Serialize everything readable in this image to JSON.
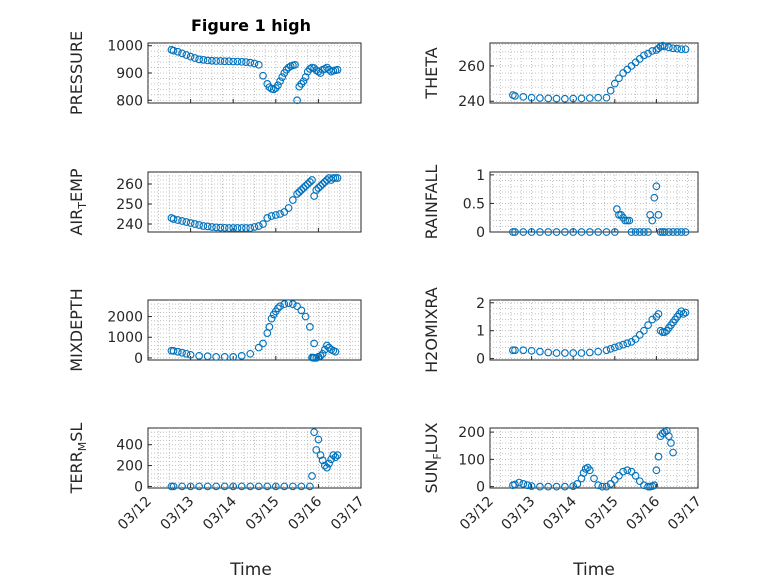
{
  "title": "Figure 1 high",
  "xlabel": "Time",
  "x_ticks": [
    "03/12",
    "03/13",
    "03/14",
    "03/15",
    "03/16",
    "03/17"
  ],
  "marker_color": "#0072BD",
  "chart_data": [
    {
      "type": "scatter",
      "ylabel": "PRESSURE",
      "ylim": [
        790,
        1010
      ],
      "yticks": [
        800,
        900,
        1000
      ],
      "grid": true,
      "x": [
        0.55,
        0.6,
        0.7,
        0.8,
        0.9,
        1.0,
        1.1,
        1.2,
        1.3,
        1.4,
        1.5,
        1.6,
        1.7,
        1.8,
        1.9,
        2.0,
        2.1,
        2.2,
        2.3,
        2.4,
        2.5,
        2.6,
        2.7,
        2.8,
        2.85,
        2.9,
        2.95,
        3.0,
        3.05,
        3.1,
        3.15,
        3.2,
        3.25,
        3.3,
        3.35,
        3.4,
        3.45,
        3.5,
        3.55,
        3.6,
        3.65,
        3.7,
        3.75,
        3.8,
        3.85,
        3.9,
        3.95,
        4.0,
        4.05,
        4.1,
        4.15,
        4.2,
        4.25,
        4.3,
        4.35,
        4.4,
        4.45
      ],
      "y": [
        985,
        982,
        978,
        972,
        966,
        960,
        955,
        950,
        948,
        946,
        945,
        944,
        944,
        943,
        943,
        942,
        942,
        941,
        940,
        938,
        935,
        930,
        890,
        860,
        848,
        842,
        840,
        845,
        855,
        870,
        885,
        900,
        912,
        920,
        925,
        928,
        930,
        800,
        850,
        860,
        870,
        885,
        905,
        915,
        920,
        918,
        910,
        905,
        900,
        912,
        915,
        920,
        912,
        905,
        908,
        910,
        912
      ]
    },
    {
      "type": "scatter",
      "ylabel": "THETA",
      "ylim": [
        239,
        273
      ],
      "yticks": [
        240,
        260
      ],
      "grid": true,
      "x": [
        0.55,
        0.6,
        0.8,
        1.0,
        1.2,
        1.4,
        1.6,
        1.8,
        2.0,
        2.2,
        2.4,
        2.6,
        2.8,
        2.9,
        3.0,
        3.1,
        3.2,
        3.3,
        3.4,
        3.5,
        3.6,
        3.7,
        3.8,
        3.9,
        4.0,
        4.05,
        4.1,
        4.15,
        4.2,
        4.3,
        4.4,
        4.5,
        4.6,
        4.7
      ],
      "y": [
        243.5,
        243,
        242.5,
        242,
        241.8,
        241.6,
        241.5,
        241.4,
        241.5,
        241.6,
        241.8,
        242,
        242,
        246,
        250,
        253,
        256,
        258,
        260,
        262,
        264,
        266,
        267,
        268.5,
        269,
        270,
        271,
        271.5,
        271,
        270.5,
        270,
        269.8,
        269.5,
        269.5
      ]
    },
    {
      "type": "scatter",
      "ylabel": "AIR_TEMP",
      "ylim": [
        236,
        266
      ],
      "yticks": [
        240,
        250,
        260
      ],
      "grid": true,
      "x": [
        0.55,
        0.6,
        0.7,
        0.8,
        0.9,
        1.0,
        1.1,
        1.2,
        1.3,
        1.4,
        1.5,
        1.6,
        1.7,
        1.8,
        1.9,
        2.0,
        2.1,
        2.2,
        2.3,
        2.4,
        2.5,
        2.6,
        2.7,
        2.8,
        2.9,
        3.0,
        3.1,
        3.2,
        3.3,
        3.4,
        3.5,
        3.55,
        3.6,
        3.65,
        3.7,
        3.75,
        3.8,
        3.85,
        3.9,
        3.95,
        4.0,
        4.05,
        4.1,
        4.15,
        4.2,
        4.25,
        4.3,
        4.35,
        4.4,
        4.45
      ],
      "y": [
        243,
        242.5,
        242,
        241.5,
        241,
        240.5,
        240,
        239.5,
        239,
        238.8,
        238.5,
        238.3,
        238.2,
        238.1,
        238,
        238,
        238,
        238,
        238,
        238,
        238.5,
        239,
        240,
        243,
        244,
        244.5,
        245,
        246,
        248,
        252,
        255,
        256,
        257,
        258,
        259,
        260,
        261,
        262,
        254,
        257,
        258,
        259,
        260,
        261,
        262,
        263,
        262,
        263,
        263,
        263
      ]
    },
    {
      "type": "scatter",
      "ylabel": "RAINFALL",
      "ylim": [
        0,
        1.05
      ],
      "yticks": [
        0,
        0.5,
        1
      ],
      "grid": true,
      "x": [
        0.55,
        0.6,
        0.8,
        1.0,
        1.2,
        1.4,
        1.6,
        1.8,
        2.0,
        2.2,
        2.4,
        2.6,
        2.8,
        3.0,
        3.05,
        3.1,
        3.15,
        3.2,
        3.25,
        3.3,
        3.35,
        3.4,
        3.5,
        3.6,
        3.7,
        3.8,
        3.85,
        3.9,
        3.95,
        4.0,
        4.05,
        4.1,
        4.15,
        4.2,
        4.3,
        4.4,
        4.5,
        4.6,
        4.7
      ],
      "y": [
        0,
        0,
        0,
        0,
        0,
        0,
        0,
        0,
        0,
        0,
        0,
        0,
        0,
        0,
        0.4,
        0.3,
        0.3,
        0.25,
        0.2,
        0.2,
        0.2,
        0,
        0,
        0,
        0,
        0,
        0.3,
        0.2,
        0.6,
        0.8,
        0.3,
        0,
        0,
        0,
        0,
        0,
        0,
        0,
        0
      ]
    },
    {
      "type": "scatter",
      "ylabel": "MIXDEPTH",
      "ylim": [
        -100,
        2800
      ],
      "yticks": [
        0,
        1000,
        2000
      ],
      "grid": true,
      "x": [
        0.55,
        0.6,
        0.7,
        0.8,
        0.9,
        1.0,
        1.2,
        1.4,
        1.6,
        1.8,
        2.0,
        2.2,
        2.4,
        2.6,
        2.7,
        2.8,
        2.85,
        2.9,
        2.95,
        3.0,
        3.05,
        3.1,
        3.2,
        3.3,
        3.4,
        3.5,
        3.6,
        3.7,
        3.8,
        3.9,
        4.0,
        3.85,
        3.88,
        3.9,
        3.95,
        4.0,
        4.05,
        4.1,
        4.15,
        4.2,
        4.25,
        4.3,
        4.35,
        4.4
      ],
      "y": [
        350,
        340,
        300,
        250,
        200,
        150,
        100,
        80,
        50,
        50,
        50,
        100,
        200,
        500,
        700,
        1200,
        1500,
        1900,
        2100,
        2250,
        2400,
        2500,
        2600,
        2650,
        2600,
        2500,
        2300,
        2000,
        1500,
        700,
        50,
        20,
        10,
        0,
        0,
        50,
        100,
        200,
        400,
        600,
        500,
        400,
        350,
        300
      ]
    },
    {
      "type": "scatter",
      "ylabel": "H2OMIXRA",
      "ylim": [
        -0.05,
        2.1
      ],
      "yticks": [
        0,
        1,
        2
      ],
      "grid": true,
      "x": [
        0.55,
        0.6,
        0.8,
        1.0,
        1.2,
        1.4,
        1.6,
        1.8,
        2.0,
        2.2,
        2.4,
        2.6,
        2.8,
        2.9,
        3.0,
        3.1,
        3.2,
        3.3,
        3.4,
        3.5,
        3.6,
        3.7,
        3.8,
        3.9,
        4.0,
        4.05,
        4.1,
        4.15,
        4.2,
        4.25,
        4.3,
        4.35,
        4.4,
        4.45,
        4.5,
        4.55,
        4.6,
        4.65,
        4.7
      ],
      "y": [
        0.3,
        0.3,
        0.3,
        0.28,
        0.25,
        0.22,
        0.2,
        0.2,
        0.2,
        0.2,
        0.22,
        0.25,
        0.3,
        0.35,
        0.4,
        0.45,
        0.5,
        0.55,
        0.6,
        0.7,
        0.85,
        1.0,
        1.2,
        1.4,
        1.5,
        1.6,
        1.0,
        0.95,
        0.95,
        1.0,
        1.1,
        1.2,
        1.3,
        1.4,
        1.5,
        1.6,
        1.7,
        1.6,
        1.65
      ]
    },
    {
      "type": "scatter",
      "ylabel": "TERR_MSL",
      "ylim": [
        -15,
        560
      ],
      "yticks": [
        0,
        200,
        400
      ],
      "grid": true,
      "x": [
        0.55,
        0.6,
        0.8,
        1.0,
        1.2,
        1.4,
        1.6,
        1.8,
        2.0,
        2.2,
        2.4,
        2.6,
        2.8,
        3.0,
        3.2,
        3.4,
        3.6,
        3.8,
        3.85,
        3.9,
        3.95,
        4.0,
        4.05,
        4.1,
        4.15,
        4.2,
        4.25,
        4.3,
        4.35,
        4.4,
        4.45
      ],
      "y": [
        0,
        0,
        0,
        0,
        0,
        0,
        0,
        0,
        0,
        0,
        0,
        0,
        0,
        0,
        0,
        0,
        0,
        0,
        100,
        520,
        350,
        450,
        300,
        250,
        200,
        180,
        220,
        260,
        300,
        280,
        300
      ]
    },
    {
      "type": "scatter",
      "ylabel": "SUN_FLUX",
      "ylim": [
        -5,
        215
      ],
      "yticks": [
        0,
        100,
        200
      ],
      "grid": true,
      "x": [
        0.55,
        0.6,
        0.7,
        0.8,
        0.9,
        1.0,
        1.2,
        1.4,
        1.6,
        1.8,
        2.0,
        2.1,
        2.2,
        2.25,
        2.3,
        2.35,
        2.4,
        2.5,
        2.6,
        2.7,
        2.8,
        2.9,
        3.0,
        3.1,
        3.2,
        3.3,
        3.4,
        3.5,
        3.6,
        3.7,
        3.8,
        3.85,
        3.9,
        3.95,
        4.0,
        4.05,
        4.1,
        4.15,
        4.2,
        4.25,
        4.3,
        4.35,
        4.4
      ],
      "y": [
        5,
        8,
        15,
        10,
        5,
        2,
        0,
        0,
        0,
        0,
        2,
        10,
        30,
        50,
        65,
        70,
        60,
        30,
        5,
        0,
        0,
        10,
        25,
        40,
        55,
        60,
        55,
        40,
        20,
        5,
        0,
        0,
        2,
        5,
        60,
        110,
        185,
        195,
        200,
        205,
        185,
        160,
        125
      ]
    }
  ]
}
